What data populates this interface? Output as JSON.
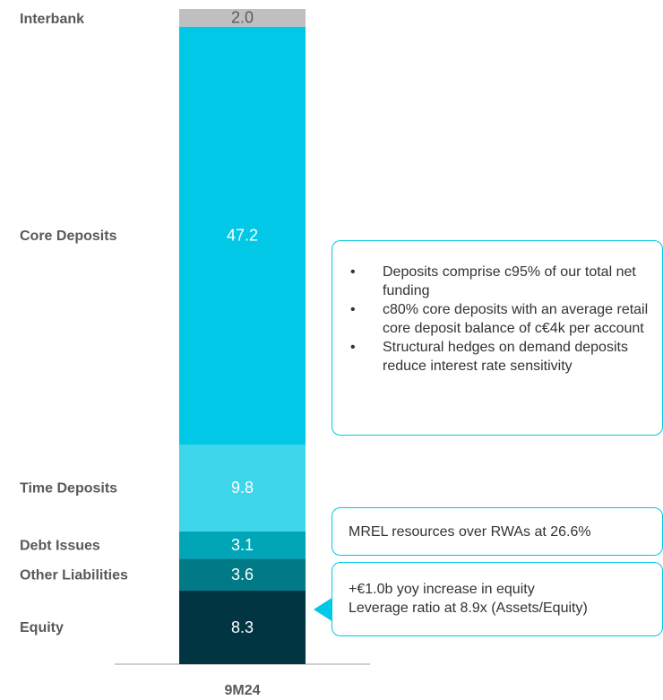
{
  "chart_data": {
    "type": "stacked_bar",
    "categories": [
      "9M24"
    ],
    "series": [
      {
        "name": "Equity",
        "color": "#003541",
        "values": [
          8.3
        ]
      },
      {
        "name": "Other Liabilities",
        "color": "#007a87",
        "values": [
          3.6
        ]
      },
      {
        "name": "Debt Issues",
        "color": "#00a5b8",
        "values": [
          3.1
        ]
      },
      {
        "name": "Time Deposits",
        "color": "#3dd6ea",
        "values": [
          9.8
        ]
      },
      {
        "name": "Core Deposits",
        "color": "#00c8e6",
        "values": [
          47.2
        ]
      },
      {
        "name": "Interbank",
        "color": "#bfbfbf",
        "values": [
          2.0
        ],
        "value_labels": [
          "2.0"
        ]
      }
    ],
    "annotations": [
      {
        "bullets": [
          "Deposits comprise c95% of our total net funding",
          "c80% core deposits with an average retail core deposit balance of c€4k per account",
          "Structural hedges on demand deposits reduce interest rate sensitivity"
        ]
      },
      {
        "text": "MREL resources over RWAs at 26.6%"
      },
      {
        "lines": [
          "+€1.0b yoy increase in equity",
          "Leverage ratio at 8.9x (Assets/Equity)"
        ]
      }
    ]
  }
}
